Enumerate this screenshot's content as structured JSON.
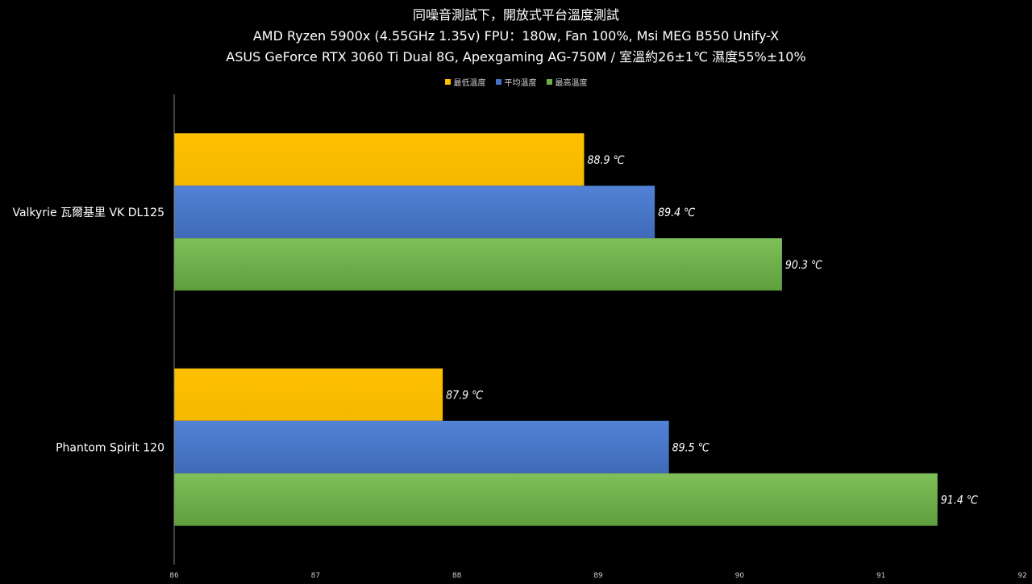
{
  "chart_data": {
    "type": "bar",
    "orientation": "horizontal",
    "title": [
      "同噪音測試下，開放式平台溫度測試",
      "AMD Ryzen 5900x (4.55GHz 1.35v) FPU：180w, Fan 100%, Msi MEG B550 Unify-X",
      "ASUS GeForce RTX 3060 Ti Dual 8G, Apexgaming AG-750M / 室溫約26±1℃ 濕度55%±10%"
    ],
    "categories": [
      "Valkyrie 瓦爾基里 VK DL125",
      "Phantom Spirit 120"
    ],
    "series": [
      {
        "name": "最低溫度",
        "color": "#FFC000",
        "values": [
          88.9,
          87.9
        ],
        "labels": [
          "88.9 ℃",
          "87.9 ℃"
        ]
      },
      {
        "name": "平均溫度",
        "color": "#4472C4",
        "values": [
          89.4,
          89.5
        ],
        "labels": [
          "89.4 ℃",
          "89.5 ℃"
        ]
      },
      {
        "name": "最高溫度",
        "color": "#70AD47",
        "values": [
          90.3,
          91.4
        ],
        "labels": [
          "90.3 ℃",
          "91.4 ℃"
        ]
      }
    ],
    "xlim": [
      86,
      92
    ],
    "xticks": [
      "86",
      "87",
      "88",
      "89",
      "90",
      "91",
      "92"
    ],
    "legend_position": "top",
    "grid": false
  }
}
